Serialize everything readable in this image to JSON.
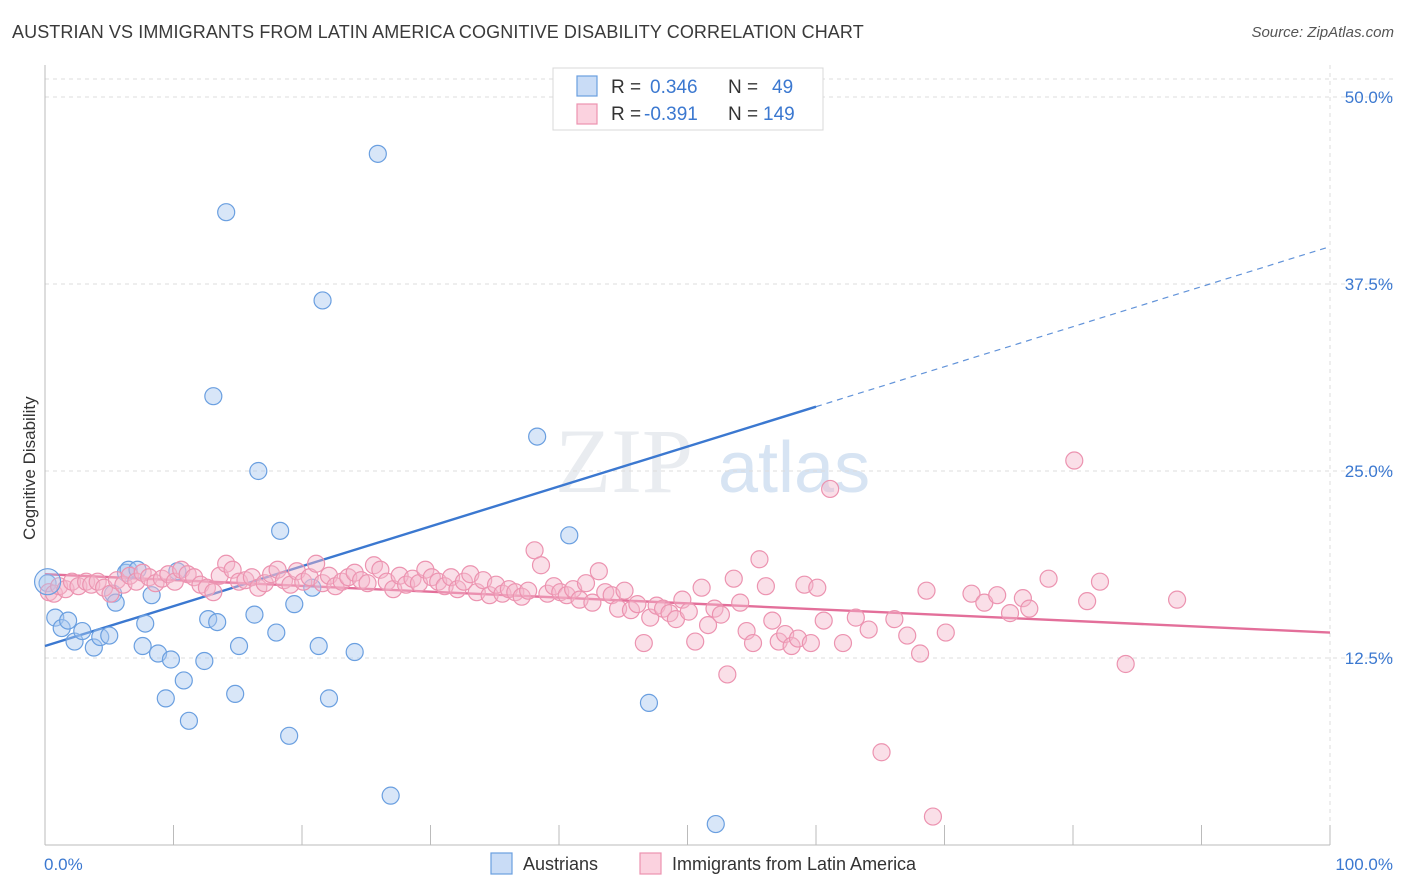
{
  "header": {
    "title": "AUSTRIAN VS IMMIGRANTS FROM LATIN AMERICA COGNITIVE DISABILITY CORRELATION CHART",
    "source": "Source: ZipAtlas.com"
  },
  "watermark": {
    "zip": "ZIP",
    "atlas": "atlas"
  },
  "legend_top": {
    "rows": [
      {
        "r_label": "R =",
        "r_value": "0.346",
        "n_label": "N =",
        "n_value": "49",
        "color": "#a9c8f0"
      },
      {
        "r_label": "R =",
        "r_value": "-0.391",
        "n_label": "N =",
        "n_value": "149",
        "color": "#f5b8cb"
      }
    ]
  },
  "legend_bottom": {
    "items": [
      {
        "label": "Austrians",
        "color": "#a9c8f0"
      },
      {
        "label": "Immigrants from Latin America",
        "color": "#f5b8cb"
      }
    ]
  },
  "chart_data": {
    "type": "scatter",
    "title": "AUSTRIAN VS IMMIGRANTS FROM LATIN AMERICA COGNITIVE DISABILITY CORRELATION CHART",
    "ylabel": "Cognitive Disability",
    "xlabel": "",
    "xlim": [
      0,
      100
    ],
    "ylim": [
      0,
      51
    ],
    "x_ticks": [
      "0.0%",
      "100.0%"
    ],
    "y_ticks": [
      {
        "value": 12.5,
        "label": "12.5%"
      },
      {
        "value": 25.0,
        "label": "25.0%"
      },
      {
        "value": 37.5,
        "label": "37.5%"
      },
      {
        "value": 50.0,
        "label": "50.0%"
      }
    ],
    "grid": true,
    "colors": {
      "blue": "#3b78d0",
      "pink": "#e36f9a"
    },
    "series": [
      {
        "name": "Austrians",
        "color": "#a9c8f0",
        "stroke": "#6a9fe0",
        "points": [
          [
            0.2,
            17.5
          ],
          [
            0.8,
            15.2
          ],
          [
            1.3,
            14.5
          ],
          [
            1.8,
            15.0
          ],
          [
            2.3,
            13.6
          ],
          [
            2.9,
            14.3
          ],
          [
            3.8,
            13.2
          ],
          [
            4.3,
            13.9
          ],
          [
            5.0,
            14.0
          ],
          [
            5.3,
            16.8
          ],
          [
            5.5,
            16.2
          ],
          [
            6.3,
            18.2
          ],
          [
            6.5,
            18.4
          ],
          [
            7.2,
            18.4
          ],
          [
            7.6,
            13.3
          ],
          [
            7.8,
            14.8
          ],
          [
            8.3,
            16.7
          ],
          [
            8.8,
            12.8
          ],
          [
            9.4,
            9.8
          ],
          [
            9.8,
            12.4
          ],
          [
            10.3,
            18.3
          ],
          [
            10.8,
            11.0
          ],
          [
            11.2,
            8.3
          ],
          [
            12.4,
            12.3
          ],
          [
            12.7,
            15.1
          ],
          [
            13.1,
            30.0
          ],
          [
            13.4,
            14.9
          ],
          [
            14.1,
            42.3
          ],
          [
            14.8,
            10.1
          ],
          [
            15.1,
            13.3
          ],
          [
            16.3,
            15.4
          ],
          [
            16.6,
            25.0
          ],
          [
            18.0,
            14.2
          ],
          [
            18.3,
            21.0
          ],
          [
            19.0,
            7.3
          ],
          [
            19.4,
            16.1
          ],
          [
            20.8,
            17.2
          ],
          [
            21.3,
            13.3
          ],
          [
            21.6,
            36.4
          ],
          [
            22.1,
            9.8
          ],
          [
            24.1,
            12.9
          ],
          [
            25.9,
            46.2
          ],
          [
            26.9,
            3.3
          ],
          [
            38.3,
            27.3
          ],
          [
            40.8,
            20.7
          ],
          [
            47.0,
            9.5
          ],
          [
            52.2,
            1.4
          ]
        ]
      },
      {
        "name": "Immigrants from Latin America",
        "color": "#f5b8cb",
        "stroke": "#ec93b0",
        "points": [
          [
            0.3,
            16.9
          ],
          [
            0.7,
            16.8
          ],
          [
            1.1,
            17.3
          ],
          [
            1.6,
            17.1
          ],
          [
            2.1,
            17.6
          ],
          [
            2.6,
            17.3
          ],
          [
            3.2,
            17.6
          ],
          [
            3.6,
            17.4
          ],
          [
            4.1,
            17.6
          ],
          [
            4.6,
            17.2
          ],
          [
            5.1,
            16.8
          ],
          [
            5.6,
            17.7
          ],
          [
            6.1,
            17.4
          ],
          [
            6.6,
            18.0
          ],
          [
            7.1,
            17.6
          ],
          [
            7.6,
            18.2
          ],
          [
            8.1,
            17.9
          ],
          [
            8.6,
            17.5
          ],
          [
            9.1,
            17.8
          ],
          [
            9.6,
            18.1
          ],
          [
            10.1,
            17.6
          ],
          [
            10.6,
            18.4
          ],
          [
            11.1,
            18.1
          ],
          [
            11.6,
            17.9
          ],
          [
            12.1,
            17.4
          ],
          [
            12.6,
            17.2
          ],
          [
            13.1,
            16.9
          ],
          [
            13.6,
            18.0
          ],
          [
            14.1,
            18.8
          ],
          [
            14.6,
            18.4
          ],
          [
            15.1,
            17.6
          ],
          [
            15.6,
            17.7
          ],
          [
            16.1,
            17.9
          ],
          [
            16.6,
            17.2
          ],
          [
            17.1,
            17.5
          ],
          [
            17.6,
            18.1
          ],
          [
            18.1,
            18.4
          ],
          [
            18.6,
            17.7
          ],
          [
            19.1,
            17.4
          ],
          [
            19.6,
            18.3
          ],
          [
            20.1,
            17.6
          ],
          [
            20.6,
            17.9
          ],
          [
            21.1,
            18.8
          ],
          [
            21.6,
            17.5
          ],
          [
            22.1,
            18.0
          ],
          [
            22.6,
            17.3
          ],
          [
            23.1,
            17.6
          ],
          [
            23.6,
            17.9
          ],
          [
            24.1,
            18.2
          ],
          [
            24.6,
            17.7
          ],
          [
            25.1,
            17.5
          ],
          [
            25.6,
            18.7
          ],
          [
            26.1,
            18.4
          ],
          [
            26.6,
            17.6
          ],
          [
            27.1,
            17.1
          ],
          [
            27.6,
            18.0
          ],
          [
            28.1,
            17.4
          ],
          [
            28.6,
            17.8
          ],
          [
            29.1,
            17.5
          ],
          [
            29.6,
            18.4
          ],
          [
            30.1,
            17.9
          ],
          [
            30.6,
            17.6
          ],
          [
            31.1,
            17.3
          ],
          [
            31.6,
            17.9
          ],
          [
            32.1,
            17.1
          ],
          [
            32.6,
            17.6
          ],
          [
            33.1,
            18.1
          ],
          [
            33.6,
            16.9
          ],
          [
            34.1,
            17.7
          ],
          [
            34.6,
            16.7
          ],
          [
            35.1,
            17.4
          ],
          [
            35.6,
            16.8
          ],
          [
            36.1,
            17.1
          ],
          [
            36.6,
            16.9
          ],
          [
            37.1,
            16.6
          ],
          [
            37.6,
            17.0
          ],
          [
            38.1,
            19.7
          ],
          [
            38.6,
            18.7
          ],
          [
            39.1,
            16.8
          ],
          [
            39.6,
            17.3
          ],
          [
            40.1,
            16.9
          ],
          [
            40.6,
            16.7
          ],
          [
            41.1,
            17.1
          ],
          [
            41.6,
            16.4
          ],
          [
            42.1,
            17.5
          ],
          [
            42.6,
            16.2
          ],
          [
            43.1,
            18.3
          ],
          [
            43.6,
            16.9
          ],
          [
            44.1,
            16.7
          ],
          [
            44.6,
            15.8
          ],
          [
            45.1,
            17.0
          ],
          [
            45.6,
            15.7
          ],
          [
            46.1,
            16.1
          ],
          [
            46.6,
            13.5
          ],
          [
            47.1,
            15.2
          ],
          [
            47.6,
            16.0
          ],
          [
            48.1,
            15.8
          ],
          [
            48.6,
            15.5
          ],
          [
            49.1,
            15.1
          ],
          [
            49.6,
            16.4
          ],
          [
            50.1,
            15.6
          ],
          [
            50.6,
            13.6
          ],
          [
            51.1,
            17.2
          ],
          [
            51.6,
            14.7
          ],
          [
            52.1,
            15.8
          ],
          [
            52.6,
            15.4
          ],
          [
            53.1,
            11.4
          ],
          [
            53.6,
            17.8
          ],
          [
            54.1,
            16.2
          ],
          [
            54.6,
            14.3
          ],
          [
            55.1,
            13.5
          ],
          [
            55.6,
            19.1
          ],
          [
            56.1,
            17.3
          ],
          [
            56.6,
            15.0
          ],
          [
            57.1,
            13.6
          ],
          [
            57.6,
            14.1
          ],
          [
            58.1,
            13.3
          ],
          [
            58.6,
            13.8
          ],
          [
            59.1,
            17.4
          ],
          [
            59.6,
            13.5
          ],
          [
            60.1,
            17.2
          ],
          [
            60.6,
            15.0
          ],
          [
            61.1,
            23.8
          ],
          [
            62.1,
            13.5
          ],
          [
            63.1,
            15.2
          ],
          [
            64.1,
            14.4
          ],
          [
            65.1,
            6.2
          ],
          [
            66.1,
            15.1
          ],
          [
            67.1,
            14.0
          ],
          [
            68.1,
            12.8
          ],
          [
            68.6,
            17.0
          ],
          [
            69.1,
            1.9
          ],
          [
            70.1,
            14.2
          ],
          [
            72.1,
            16.8
          ],
          [
            73.1,
            16.2
          ],
          [
            74.1,
            16.7
          ],
          [
            75.1,
            15.5
          ],
          [
            76.1,
            16.5
          ],
          [
            76.6,
            15.8
          ],
          [
            78.1,
            17.8
          ],
          [
            80.1,
            25.7
          ],
          [
            81.1,
            16.3
          ],
          [
            82.1,
            17.6
          ],
          [
            84.1,
            12.1
          ],
          [
            88.1,
            16.4
          ]
        ]
      }
    ],
    "trendlines": [
      {
        "series": "Austrians",
        "x0": 0,
        "y0": 13.3,
        "x1": 60,
        "y1": 29.3,
        "dashed_to": [
          100,
          40.0
        ],
        "color": "#3b78d0"
      },
      {
        "series": "Immigrants from Latin America",
        "x0": 0,
        "y0": 18.1,
        "x1": 100,
        "y1": 14.2,
        "color": "#e36f9a"
      }
    ]
  }
}
